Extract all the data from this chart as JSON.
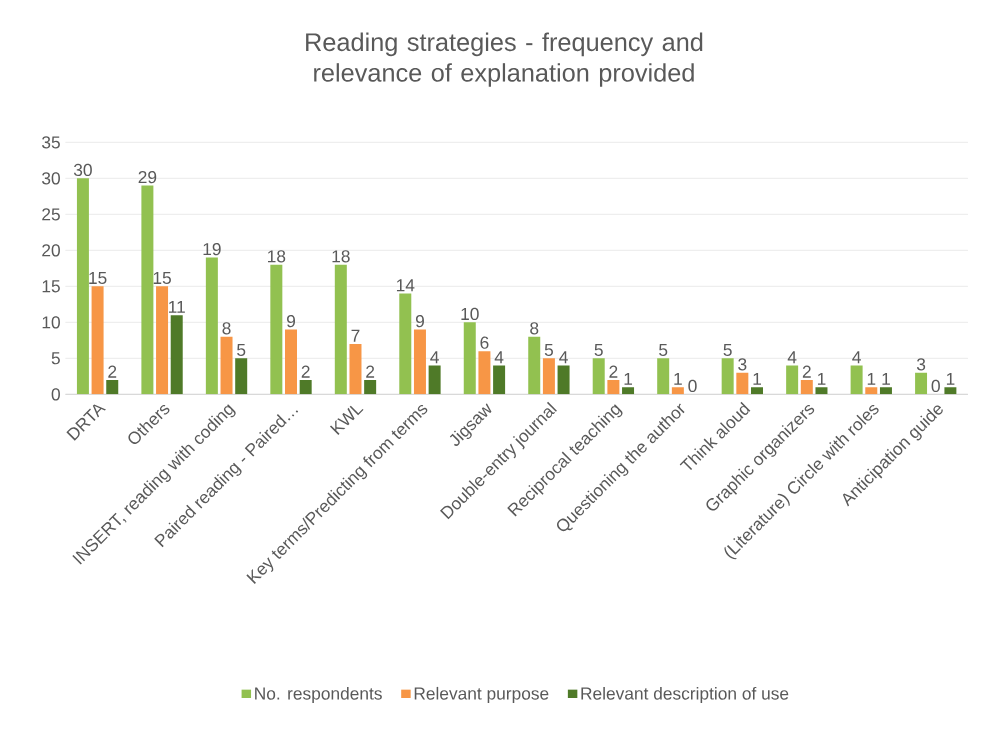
{
  "chart_data": {
    "type": "bar",
    "title": "Reading strategies - frequency and relevance of explanation provided",
    "categories": [
      "DRTA",
      "Others",
      "INSERT, reading with coding",
      "Paired reading - Paired…",
      "KWL",
      "Key terms/Predicting from terms",
      "Jigsaw",
      "Double-entry journal",
      "Reciprocal teaching",
      "Questioning the author",
      "Think aloud",
      "Graphic organizers",
      "(Literature) Circle with roles",
      "Anticipation guide"
    ],
    "series": [
      {
        "name": "No. respondents",
        "color": "#92c150",
        "values": [
          30,
          29,
          19,
          18,
          18,
          14,
          10,
          8,
          5,
          5,
          5,
          4,
          4,
          3
        ]
      },
      {
        "name": "Relevant purpose",
        "color": "#f79646",
        "values": [
          15,
          15,
          8,
          9,
          7,
          9,
          6,
          5,
          2,
          1,
          3,
          2,
          1,
          0
        ]
      },
      {
        "name": "Relevant description of use",
        "color": "#4f7a28",
        "values": [
          2,
          11,
          5,
          2,
          2,
          4,
          4,
          4,
          1,
          0,
          1,
          1,
          1,
          1
        ]
      }
    ],
    "ylim": [
      0,
      35
    ],
    "yticks": [
      0,
      5,
      10,
      15,
      20,
      25,
      30,
      35
    ],
    "grid": "y",
    "legend": "bottom",
    "data_labels": true
  }
}
